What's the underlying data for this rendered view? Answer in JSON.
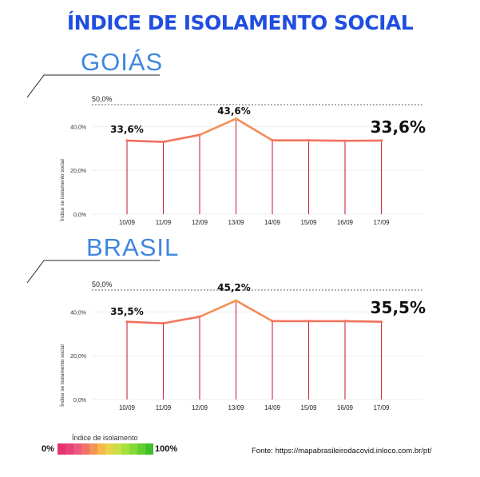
{
  "title": "ÍNDICE DE ISOLAMENTO SOCIAL",
  "colors": {
    "title": "#1f4ee0",
    "region": "#3f86df",
    "line_low": "#f07060",
    "line_high": "#f6a24e",
    "drop": "#c8283c"
  },
  "chart_data": [
    {
      "type": "line",
      "title": "GOIÁS",
      "ylabel": "Índice se isolamento social",
      "ylim": [
        0,
        50
      ],
      "reference_label": "50,0%",
      "y_ticks": [
        "0,0%",
        "20,0%",
        "40,0%"
      ],
      "categories": [
        "10/09",
        "11/09",
        "12/09",
        "13/09",
        "14/09",
        "15/09",
        "16/09",
        "17/09"
      ],
      "values": [
        33.6,
        33.0,
        36.2,
        43.6,
        33.7,
        33.7,
        33.5,
        33.6
      ],
      "first_label": "33,6%",
      "peak_label": "43,6%",
      "last_label": "33,6%"
    },
    {
      "type": "line",
      "title": "BRASIL",
      "ylabel": "Índice se isolamento social",
      "ylim": [
        0,
        50
      ],
      "reference_label": "50,0%",
      "y_ticks": [
        "0,0%",
        "20,0%",
        "40,0%"
      ],
      "categories": [
        "10/09",
        "11/09",
        "12/09",
        "13/09",
        "14/09",
        "15/09",
        "16/09",
        "17/09"
      ],
      "values": [
        35.5,
        34.8,
        37.8,
        45.2,
        35.8,
        35.8,
        35.8,
        35.5
      ],
      "first_label": "35,5%",
      "peak_label": "45,2%",
      "last_label": "35,5%"
    }
  ],
  "legend": {
    "title": "Índice de isolamento",
    "min_label": "0%",
    "max_label": "100%",
    "colors": [
      "#e6336f",
      "#e94179",
      "#ed5a7f",
      "#f07268",
      "#f39555",
      "#f7b84a",
      "#e9d34a",
      "#c8df45",
      "#a6e03f",
      "#84d838",
      "#5fcf30",
      "#3ec02a"
    ]
  },
  "source": "Fonte: https://mapabrasileirodacovid.inloco.com.br/pt/"
}
